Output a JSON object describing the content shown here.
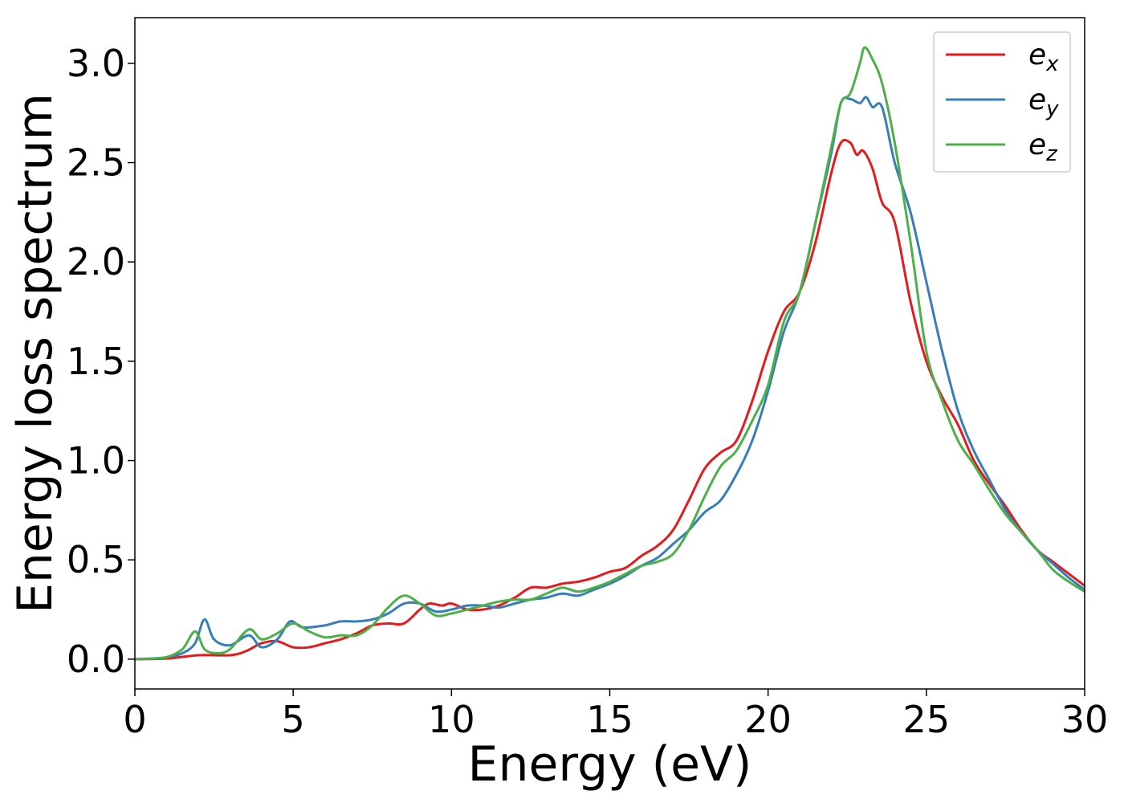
{
  "chart_data": {
    "type": "line",
    "title": "",
    "xlabel": "Energy (eV)",
    "ylabel": "Energy loss spectrum",
    "xlim": [
      0,
      30
    ],
    "ylim": [
      -0.15,
      3.23
    ],
    "xticks": [
      0,
      5,
      10,
      15,
      20,
      25,
      30
    ],
    "xtick_labels": [
      "0",
      "5",
      "10",
      "15",
      "20",
      "25",
      "30"
    ],
    "yticks": [
      0.0,
      0.5,
      1.0,
      1.5,
      2.0,
      2.5,
      3.0
    ],
    "ytick_labels": [
      "0.0",
      "0.5",
      "1.0",
      "1.5",
      "2.0",
      "2.5",
      "3.0"
    ],
    "grid": false,
    "legend_position": "top-right",
    "series": [
      {
        "name": "e",
        "subscript": "x",
        "color": "#e41a1c",
        "x": [
          0,
          1,
          2,
          3,
          3.5,
          4,
          4.5,
          5,
          5.5,
          6,
          6.5,
          7,
          7.5,
          8,
          8.5,
          9,
          9.3,
          9.7,
          10,
          10.5,
          11,
          11.5,
          12,
          12.5,
          13,
          13.5,
          14,
          14.5,
          15,
          15.5,
          16,
          16.5,
          17,
          17.5,
          18,
          18.5,
          19,
          19.5,
          20,
          20.5,
          21,
          21.5,
          22,
          22.3,
          22.6,
          22.8,
          23,
          23.3,
          23.6,
          24,
          24.5,
          25,
          25.5,
          26,
          26.5,
          27,
          27.5,
          28,
          28.5,
          29,
          29.5,
          30
        ],
        "values": [
          0.0,
          0.003,
          0.02,
          0.02,
          0.04,
          0.08,
          0.09,
          0.06,
          0.06,
          0.08,
          0.1,
          0.13,
          0.17,
          0.18,
          0.18,
          0.25,
          0.28,
          0.27,
          0.28,
          0.25,
          0.25,
          0.27,
          0.31,
          0.36,
          0.36,
          0.38,
          0.39,
          0.41,
          0.44,
          0.46,
          0.52,
          0.57,
          0.65,
          0.8,
          0.96,
          1.04,
          1.1,
          1.3,
          1.55,
          1.75,
          1.85,
          2.1,
          2.45,
          2.6,
          2.6,
          2.54,
          2.56,
          2.47,
          2.3,
          2.2,
          1.8,
          1.5,
          1.32,
          1.18,
          1.0,
          0.88,
          0.77,
          0.65,
          0.55,
          0.49,
          0.43,
          0.37
        ]
      },
      {
        "name": "e",
        "subscript": "y",
        "color": "#377eb8",
        "x": [
          0,
          0.5,
          1,
          1.5,
          1.9,
          2.2,
          2.5,
          3,
          3.6,
          4,
          4.5,
          4.9,
          5.3,
          6,
          6.5,
          7,
          7.5,
          8,
          8.5,
          9,
          9.5,
          10,
          10.5,
          11,
          11.5,
          12,
          12.5,
          13,
          13.5,
          14,
          14.5,
          15,
          15.5,
          16,
          16.5,
          17,
          17.5,
          18,
          18.5,
          19,
          19.5,
          20,
          20.5,
          21,
          21.5,
          22,
          22.3,
          22.6,
          22.9,
          23.1,
          23.3,
          23.6,
          24,
          24.5,
          25,
          25.5,
          26,
          26.5,
          27,
          27.5,
          28,
          28.5,
          29,
          29.5,
          30
        ],
        "values": [
          0.0,
          0.003,
          0.01,
          0.03,
          0.08,
          0.2,
          0.1,
          0.07,
          0.12,
          0.06,
          0.1,
          0.19,
          0.16,
          0.17,
          0.19,
          0.19,
          0.2,
          0.23,
          0.28,
          0.28,
          0.24,
          0.25,
          0.27,
          0.27,
          0.26,
          0.28,
          0.3,
          0.31,
          0.33,
          0.32,
          0.35,
          0.38,
          0.42,
          0.47,
          0.51,
          0.58,
          0.65,
          0.74,
          0.8,
          0.93,
          1.1,
          1.35,
          1.65,
          1.85,
          2.2,
          2.55,
          2.8,
          2.82,
          2.8,
          2.83,
          2.78,
          2.78,
          2.5,
          2.25,
          1.9,
          1.55,
          1.25,
          1.05,
          0.9,
          0.75,
          0.64,
          0.55,
          0.48,
          0.41,
          0.35
        ]
      },
      {
        "name": "e",
        "subscript": "z",
        "color": "#4daf4a",
        "x": [
          0,
          0.5,
          1,
          1.5,
          1.9,
          2.2,
          2.6,
          3,
          3.6,
          4,
          4.5,
          5,
          5.5,
          6,
          6.5,
          7,
          7.5,
          8,
          8.5,
          9,
          9.5,
          10,
          10.5,
          11,
          11.5,
          12,
          12.5,
          13,
          13.5,
          14,
          14.5,
          15,
          15.5,
          16,
          16.5,
          17,
          17.5,
          18,
          18.5,
          19,
          19.5,
          20,
          20.5,
          21,
          21.5,
          22,
          22.3,
          22.6,
          22.9,
          23.05,
          23.3,
          23.6,
          24,
          24.5,
          25,
          25.5,
          26,
          26.5,
          27,
          27.5,
          28,
          28.5,
          29,
          29.5,
          30
        ],
        "values": [
          0.0,
          0.003,
          0.01,
          0.05,
          0.14,
          0.05,
          0.03,
          0.05,
          0.15,
          0.1,
          0.13,
          0.18,
          0.14,
          0.11,
          0.12,
          0.12,
          0.17,
          0.26,
          0.32,
          0.28,
          0.22,
          0.23,
          0.25,
          0.27,
          0.29,
          0.3,
          0.3,
          0.33,
          0.36,
          0.34,
          0.36,
          0.39,
          0.43,
          0.47,
          0.49,
          0.53,
          0.65,
          0.82,
          0.97,
          1.05,
          1.2,
          1.38,
          1.7,
          1.85,
          2.2,
          2.58,
          2.8,
          2.85,
          3.0,
          3.08,
          3.02,
          2.9,
          2.6,
          2.1,
          1.55,
          1.3,
          1.1,
          0.98,
          0.85,
          0.73,
          0.64,
          0.55,
          0.45,
          0.39,
          0.34
        ]
      }
    ]
  }
}
